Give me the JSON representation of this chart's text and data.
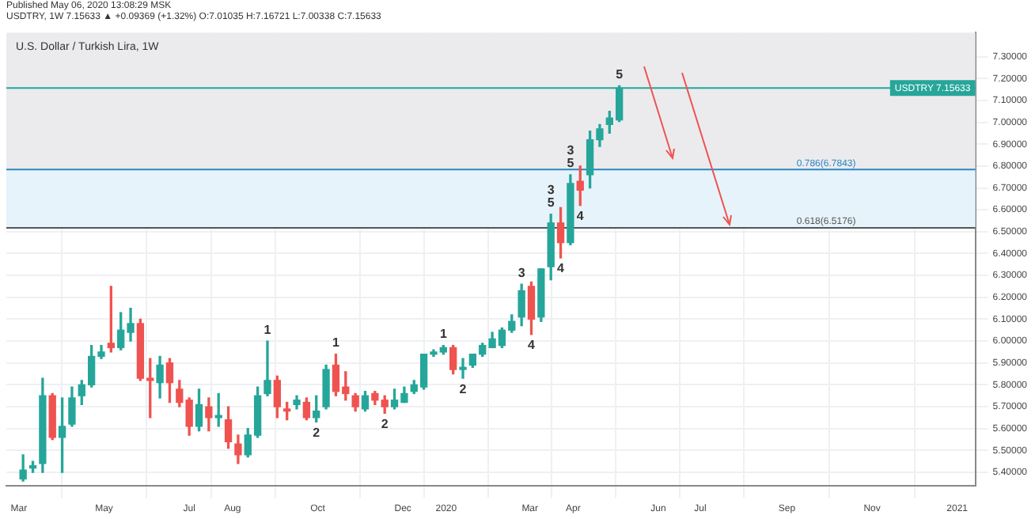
{
  "chart_data": {
    "type": "candlestick",
    "title": "U.S. Dollar / Turkish Lira, 1W",
    "subtitle": "USDTRY, 1W 7.15633 ▲ +0.09369 (+1.32%) O:7.01035 H:7.16721 L:7.00338 C:7.15633",
    "x": [
      "2019-03-04",
      "2019-03-11",
      "2019-03-18",
      "2019-03-25",
      "2019-04-01",
      "2019-04-08",
      "2019-04-15",
      "2019-04-22",
      "2019-04-29",
      "2019-05-06",
      "2019-05-13",
      "2019-05-20",
      "2019-05-27",
      "2019-06-03",
      "2019-06-10",
      "2019-06-17",
      "2019-06-24",
      "2019-07-01",
      "2019-07-08",
      "2019-07-15",
      "2019-07-22",
      "2019-07-29",
      "2019-08-05",
      "2019-08-12",
      "2019-08-19",
      "2019-08-26",
      "2019-09-02",
      "2019-09-09",
      "2019-09-16",
      "2019-09-23",
      "2019-09-30",
      "2019-10-07",
      "2019-10-14",
      "2019-10-21",
      "2019-10-28",
      "2019-11-04",
      "2019-11-11",
      "2019-11-18",
      "2019-11-25",
      "2019-12-02",
      "2019-12-09",
      "2019-12-16",
      "2019-12-23",
      "2019-12-30",
      "2020-01-06",
      "2020-01-13",
      "2020-01-20",
      "2020-01-27",
      "2020-02-03",
      "2020-02-10",
      "2020-02-17",
      "2020-02-24",
      "2020-03-02",
      "2020-03-09",
      "2020-03-16",
      "2020-03-23",
      "2020-03-30",
      "2020-04-06",
      "2020-04-13",
      "2020-04-20",
      "2020-04-27",
      "2020-05-04"
    ],
    "ohlc": [
      [
        5.37,
        5.48,
        5.36,
        5.41
      ],
      [
        5.42,
        5.45,
        5.4,
        5.43
      ],
      [
        5.44,
        5.83,
        5.4,
        5.75
      ],
      [
        5.75,
        5.76,
        5.55,
        5.56
      ],
      [
        5.56,
        5.74,
        5.4,
        5.61
      ],
      [
        5.62,
        5.79,
        5.61,
        5.74
      ],
      [
        5.75,
        5.82,
        5.71,
        5.8
      ],
      [
        5.8,
        5.98,
        5.79,
        5.93
      ],
      [
        5.93,
        5.98,
        5.92,
        5.95
      ],
      [
        5.99,
        6.25,
        5.95,
        5.97
      ],
      [
        5.97,
        6.13,
        5.96,
        6.05
      ],
      [
        6.04,
        6.15,
        6.0,
        6.08
      ],
      [
        6.08,
        6.1,
        5.82,
        5.83
      ],
      [
        5.83,
        5.92,
        5.65,
        5.82
      ],
      [
        5.81,
        5.93,
        5.74,
        5.89
      ],
      [
        5.9,
        5.92,
        5.72,
        5.81
      ],
      [
        5.78,
        5.82,
        5.7,
        5.72
      ],
      [
        5.73,
        5.74,
        5.57,
        5.61
      ],
      [
        5.61,
        5.78,
        5.59,
        5.71
      ],
      [
        5.7,
        5.74,
        5.59,
        5.65
      ],
      [
        5.65,
        5.76,
        5.61,
        5.66
      ],
      [
        5.64,
        5.7,
        5.51,
        5.54
      ],
      [
        5.53,
        5.57,
        5.44,
        5.48
      ],
      [
        5.48,
        5.6,
        5.47,
        5.57
      ],
      [
        5.57,
        5.79,
        5.56,
        5.75
      ],
      [
        5.76,
        6.0,
        5.75,
        5.82
      ],
      [
        5.82,
        5.84,
        5.65,
        5.7
      ],
      [
        5.69,
        5.72,
        5.64,
        5.68
      ],
      [
        5.71,
        5.75,
        5.69,
        5.73
      ],
      [
        5.72,
        5.74,
        5.64,
        5.65
      ],
      [
        5.65,
        5.75,
        5.63,
        5.68
      ],
      [
        5.7,
        5.89,
        5.69,
        5.87
      ],
      [
        5.89,
        5.94,
        5.75,
        5.77
      ],
      [
        5.79,
        5.86,
        5.73,
        5.76
      ],
      [
        5.75,
        5.76,
        5.68,
        5.7
      ],
      [
        5.69,
        5.77,
        5.68,
        5.75
      ],
      [
        5.76,
        5.77,
        5.71,
        5.73
      ],
      [
        5.73,
        5.75,
        5.67,
        5.7
      ],
      [
        5.7,
        5.78,
        5.69,
        5.73
      ],
      [
        5.72,
        5.79,
        5.72,
        5.76
      ],
      [
        5.77,
        5.82,
        5.76,
        5.8
      ],
      [
        5.79,
        5.94,
        5.78,
        5.94
      ],
      [
        5.94,
        5.96,
        5.93,
        5.95
      ],
      [
        5.95,
        5.98,
        5.94,
        5.97
      ],
      [
        5.97,
        5.98,
        5.85,
        5.87
      ],
      [
        5.87,
        5.92,
        5.83,
        5.88
      ],
      [
        5.89,
        5.94,
        5.88,
        5.94
      ],
      [
        5.94,
        5.99,
        5.93,
        5.98
      ],
      [
        5.97,
        6.04,
        5.97,
        6.01
      ],
      [
        5.98,
        6.06,
        5.97,
        6.05
      ],
      [
        6.05,
        6.12,
        6.04,
        6.09
      ],
      [
        6.11,
        6.26,
        6.07,
        6.23
      ],
      [
        6.25,
        6.27,
        6.03,
        6.1
      ],
      [
        6.11,
        6.33,
        6.09,
        6.33
      ],
      [
        6.34,
        6.58,
        6.28,
        6.54
      ],
      [
        6.54,
        6.61,
        6.38,
        6.45
      ],
      [
        6.45,
        6.76,
        6.44,
        6.72
      ],
      [
        6.73,
        6.8,
        6.62,
        6.69
      ],
      [
        6.76,
        6.96,
        6.7,
        6.92
      ],
      [
        6.92,
        6.99,
        6.89,
        6.97
      ],
      [
        6.99,
        7.05,
        6.95,
        7.02
      ],
      [
        7.01035,
        7.16721,
        7.00338,
        7.15633
      ]
    ],
    "colors": [
      "#26a69a",
      "#26a69a",
      "#26a69a",
      "#ef5350",
      "#26a69a",
      "#26a69a",
      "#26a69a",
      "#26a69a",
      "#26a69a",
      "#ef5350",
      "#26a69a",
      "#26a69a",
      "#ef5350",
      "#ef5350",
      "#26a69a",
      "#ef5350",
      "#ef5350",
      "#ef5350",
      "#26a69a",
      "#ef5350",
      "#26a69a",
      "#ef5350",
      "#ef5350",
      "#26a69a",
      "#26a69a",
      "#26a69a",
      "#ef5350",
      "#ef5350",
      "#26a69a",
      "#ef5350",
      "#26a69a",
      "#26a69a",
      "#ef5350",
      "#ef5350",
      "#ef5350",
      "#26a69a",
      "#ef5350",
      "#ef5350",
      "#26a69a",
      "#26a69a",
      "#26a69a",
      "#26a69a",
      "#26a69a",
      "#26a69a",
      "#ef5350",
      "#26a69a",
      "#26a69a",
      "#26a69a",
      "#26a69a",
      "#26a69a",
      "#26a69a",
      "#26a69a",
      "#ef5350",
      "#26a69a",
      "#26a69a",
      "#ef5350",
      "#26a69a",
      "#ef5350",
      "#26a69a",
      "#26a69a",
      "#26a69a",
      "#26a69a"
    ],
    "xlim": [
      "2019-02-20",
      "2021-01-14"
    ],
    "xticks": [
      {
        "value": "2019-03-01",
        "label": "Mar"
      },
      {
        "value": "2019-05-01",
        "label": "May"
      },
      {
        "value": "2019-07-01",
        "label": "Jul"
      },
      {
        "value": "2019-08-01",
        "label": "Aug"
      },
      {
        "value": "2019-10-01",
        "label": "Oct"
      },
      {
        "value": "2019-12-01",
        "label": "Dec"
      },
      {
        "value": "2020-01-01",
        "label": "2020"
      },
      {
        "value": "2020-03-01",
        "label": "Mar"
      },
      {
        "value": "2020-04-01",
        "label": "Apr"
      },
      {
        "value": "2020-06-01",
        "label": "Jun"
      },
      {
        "value": "2020-07-01",
        "label": "Jul"
      },
      {
        "value": "2020-09-01",
        "label": "Sep"
      },
      {
        "value": "2020-11-01",
        "label": "Nov"
      },
      {
        "value": "2021-01-01",
        "label": "2021"
      }
    ],
    "ylim": [
      5.34,
      7.41
    ],
    "yticks": [
      {
        "value": 5.4,
        "label": "5.40000"
      },
      {
        "value": 5.5,
        "label": "5.50000"
      },
      {
        "value": 5.6,
        "label": "5.60000"
      },
      {
        "value": 5.7,
        "label": "5.70000"
      },
      {
        "value": 5.8,
        "label": "5.80000"
      },
      {
        "value": 5.9,
        "label": "5.90000"
      },
      {
        "value": 6.0,
        "label": "6.00000"
      },
      {
        "value": 6.1,
        "label": "6.10000"
      },
      {
        "value": 6.2,
        "label": "6.20000"
      },
      {
        "value": 6.3,
        "label": "6.30000"
      },
      {
        "value": 6.4,
        "label": "6.40000"
      },
      {
        "value": 6.5,
        "label": "6.50000"
      },
      {
        "value": 6.6,
        "label": "6.60000"
      },
      {
        "value": 6.7,
        "label": "6.70000"
      },
      {
        "value": 6.8,
        "label": "6.80000"
      },
      {
        "value": 6.9,
        "label": "6.90000"
      },
      {
        "value": 7.0,
        "label": "7.00000"
      },
      {
        "value": 7.1,
        "label": "7.10000"
      },
      {
        "value": 7.2,
        "label": "7.20000"
      },
      {
        "value": 7.3,
        "label": "7.30000"
      }
    ],
    "grid": true,
    "bands": [
      {
        "axis": "y",
        "from": 6.7843,
        "to": 7.41,
        "color": "#ebebee"
      },
      {
        "axis": "y",
        "from": 6.5176,
        "to": 6.7843,
        "color": "#e6f3fb"
      }
    ],
    "ref_lines": [
      {
        "axis": "y",
        "value": 7.15633,
        "label": "USDTRY 7.15633",
        "color": "#26a69a"
      },
      {
        "axis": "y",
        "value": 6.7843,
        "label": "0.786(6.7843)",
        "color": "#2f86c0"
      },
      {
        "axis": "y",
        "value": 6.5176,
        "label": "0.618(6.5176)",
        "color": "#555555"
      }
    ],
    "annotations": [
      "Published May 06, 2020 13:08:29 MSK",
      {
        "text": "1",
        "x": "2019-08-26",
        "y": 6.0
      },
      {
        "text": "2",
        "x": "2019-09-30",
        "y": 5.63
      },
      {
        "text": "1",
        "x": "2019-10-14",
        "y": 5.94
      },
      {
        "text": "2",
        "x": "2019-11-18",
        "y": 5.67
      },
      {
        "text": "1",
        "x": "2019-12-30",
        "y": 5.98
      },
      {
        "text": "2",
        "x": "2020-01-13",
        "y": 5.83
      },
      {
        "text": "3",
        "x": "2020-02-24",
        "y": 6.26
      },
      {
        "text": "4",
        "x": "2020-03-02",
        "y": 6.03
      },
      {
        "text": "5",
        "x": "2020-03-16",
        "y": 6.58
      },
      {
        "text": "3",
        "x": "2020-03-16",
        "y": 6.58
      },
      {
        "text": "4",
        "x": "2020-03-23",
        "y": 6.38
      },
      {
        "text": "5",
        "x": "2020-03-30",
        "y": 6.76
      },
      {
        "text": "3",
        "x": "2020-03-30",
        "y": 6.76
      },
      {
        "text": "4",
        "x": "2020-04-06",
        "y": 6.62
      },
      {
        "text": "5",
        "x": "2020-05-04",
        "y": 7.16721
      }
    ],
    "legend": false
  }
}
